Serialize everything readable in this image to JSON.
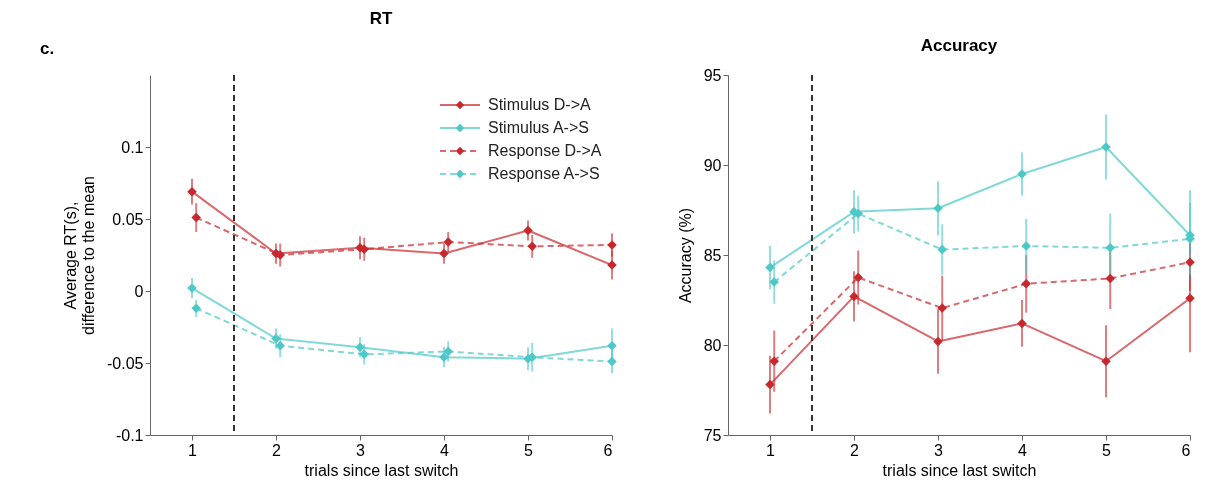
{
  "chart_data": [
    {
      "type": "line",
      "title": "RT",
      "xlabel": "trials since last switch",
      "ylabel": "Average RT(s),\ndifference to the mean",
      "annotations": [
        "c."
      ],
      "x": [
        1,
        2,
        3,
        4,
        5,
        6
      ],
      "xlim": [
        0.5,
        6
      ],
      "xticks": [
        1,
        2,
        3,
        4,
        5,
        6
      ],
      "ylim": [
        -0.1,
        0.15
      ],
      "yticks": [
        -0.1,
        -0.05,
        0,
        0.05,
        0.1
      ],
      "grid": false,
      "legend": "top right",
      "marker": "diamond",
      "ref_lines": [
        {
          "axis": "x",
          "value": 1.5,
          "color": "#333333",
          "line_style": "dashed"
        }
      ],
      "series": [
        {
          "name": "Stimulus D->A",
          "color": "#c8282d",
          "line_style": "solid",
          "values": [
            0.069,
            0.026,
            0.03,
            0.026,
            0.042,
            0.018
          ],
          "errors": [
            0.009,
            0.007,
            0.008,
            0.007,
            0.007,
            0.01
          ]
        },
        {
          "name": "Stimulus A->S",
          "color": "#4cc8c8",
          "line_style": "solid",
          "values": [
            0.002,
            -0.033,
            -0.039,
            -0.046,
            -0.047,
            -0.038
          ],
          "errors": [
            0.007,
            0.007,
            0.007,
            0.007,
            0.008,
            0.012
          ]
        },
        {
          "name": "Response D->A",
          "color": "#c8282d",
          "line_style": "dashed",
          "x": [
            1.05,
            2.05,
            3.05,
            4.05,
            5.05,
            6
          ],
          "values": [
            0.051,
            0.025,
            0.029,
            0.034,
            0.031,
            0.032
          ],
          "errors": [
            0.01,
            0.008,
            0.008,
            0.007,
            0.008,
            0.008
          ]
        },
        {
          "name": "Response A->S",
          "color": "#4cc8c8",
          "line_style": "dashed",
          "x": [
            1.05,
            2.05,
            3.05,
            4.05,
            5.05,
            6
          ],
          "values": [
            -0.012,
            -0.038,
            -0.044,
            -0.042,
            -0.046,
            -0.049
          ],
          "errors": [
            0.006,
            0.008,
            0.007,
            0.007,
            0.01,
            0.008
          ]
        }
      ]
    },
    {
      "type": "line",
      "title": "Accuracy",
      "xlabel": "trials since last switch",
      "ylabel": "Accuracy (%)",
      "x": [
        1,
        2,
        3,
        4,
        5,
        6
      ],
      "xlim": [
        0.5,
        6
      ],
      "xticks": [
        1,
        2,
        3,
        4,
        5,
        6
      ],
      "ylim": [
        75,
        95
      ],
      "yticks": [
        75,
        80,
        85,
        90,
        95
      ],
      "grid": false,
      "marker": "diamond",
      "ref_lines": [
        {
          "axis": "x",
          "value": 1.5,
          "color": "#333333",
          "line_style": "dashed"
        }
      ],
      "series": [
        {
          "color": "#c8282d",
          "line_style": "solid",
          "values": [
            77.8,
            82.7,
            80.2,
            81.2,
            79.1,
            82.6
          ],
          "errors": [
            1.6,
            1.4,
            1.8,
            1.3,
            2.0,
            3.0
          ]
        },
        {
          "color": "#4cc8c8",
          "line_style": "solid",
          "values": [
            84.3,
            87.4,
            87.6,
            89.5,
            91.0,
            86.1
          ],
          "errors": [
            1.2,
            1.2,
            1.5,
            1.2,
            1.8,
            2.5
          ]
        },
        {
          "color": "#c8282d",
          "line_style": "dashed",
          "x": [
            1.05,
            2.05,
            3.05,
            4.05,
            5.05,
            6
          ],
          "values": [
            79.1,
            83.75,
            82.05,
            83.4,
            83.7,
            84.6
          ],
          "errors": [
            1.7,
            1.5,
            1.8,
            1.6,
            1.7,
            1.6
          ]
        },
        {
          "color": "#4cc8c8",
          "line_style": "dashed",
          "x": [
            1.05,
            2.05,
            3.05,
            4.05,
            5.05,
            6
          ],
          "values": [
            83.5,
            87.3,
            85.3,
            85.5,
            85.4,
            85.9
          ],
          "errors": [
            1.2,
            1.0,
            1.4,
            1.5,
            1.9,
            2.0
          ]
        }
      ]
    }
  ]
}
